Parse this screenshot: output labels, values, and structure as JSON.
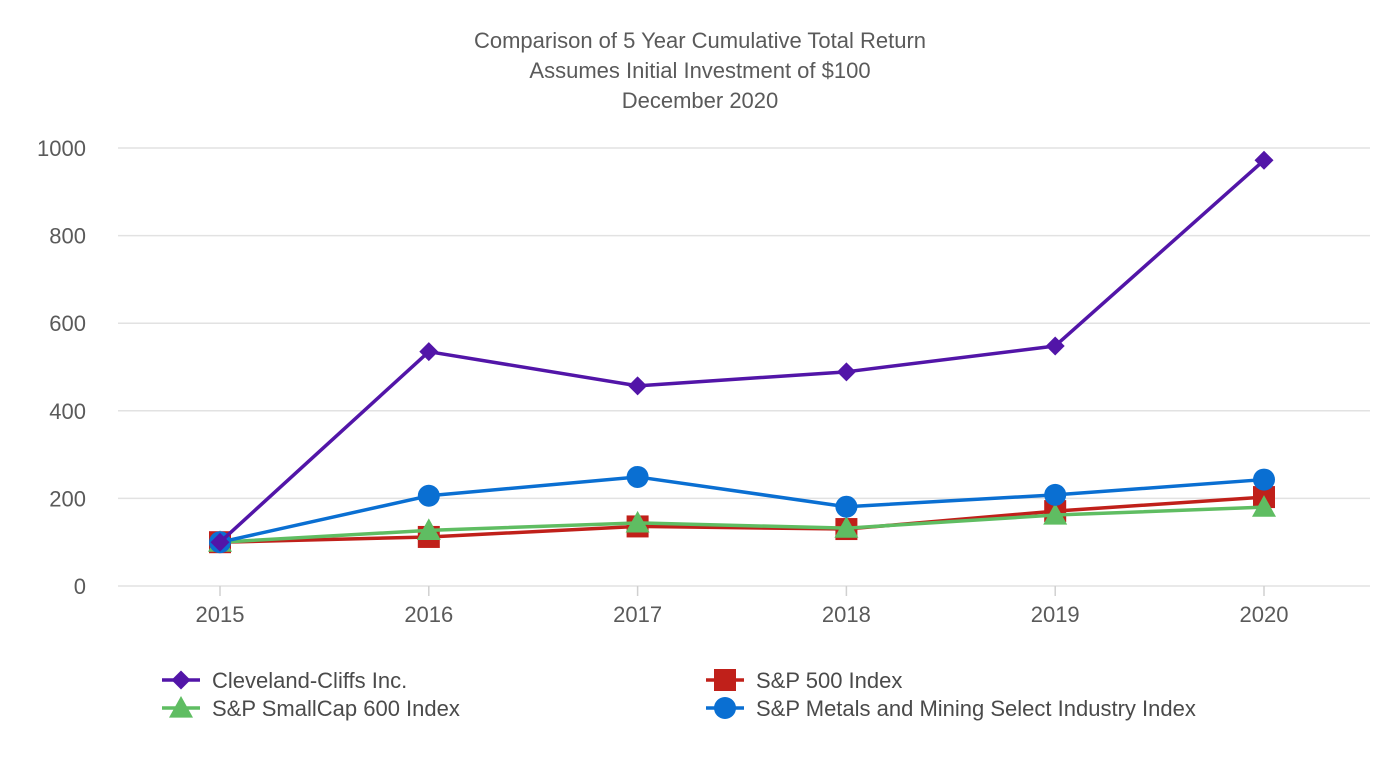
{
  "chart_data": {
    "type": "line",
    "title": [
      "Comparison of 5 Year Cumulative Total Return",
      "Assumes Initial Investment of $100",
      "December 2020"
    ],
    "x": [
      "2015",
      "2016",
      "2017",
      "2018",
      "2019",
      "2020"
    ],
    "yticks": [
      "0",
      "200",
      "400",
      "600",
      "800",
      "1000"
    ],
    "ylim": [
      0,
      1000
    ],
    "grid": true,
    "legend_position": "bottom",
    "series": [
      {
        "name": "Cleveland-Cliffs Inc.",
        "marker": "diamond",
        "color": "#5215a8",
        "values": [
          100,
          535,
          457,
          489,
          548,
          972
        ]
      },
      {
        "name": "S&P 500 Index",
        "marker": "square",
        "color": "#c0201a",
        "values": [
          100,
          112,
          136,
          130,
          171,
          203
        ]
      },
      {
        "name": "S&P SmallCap 600 Index",
        "marker": "triangle",
        "color": "#5fbd62",
        "values": [
          100,
          127,
          144,
          132,
          162,
          180
        ]
      },
      {
        "name": "S&P Metals and Mining Select Industry Index",
        "marker": "circle",
        "color": "#0a6fd2",
        "values": [
          100,
          206,
          249,
          181,
          208,
          243
        ]
      }
    ],
    "draw_order": [
      1,
      2,
      3,
      0
    ],
    "legend_order": [
      0,
      1,
      2,
      3
    ]
  }
}
